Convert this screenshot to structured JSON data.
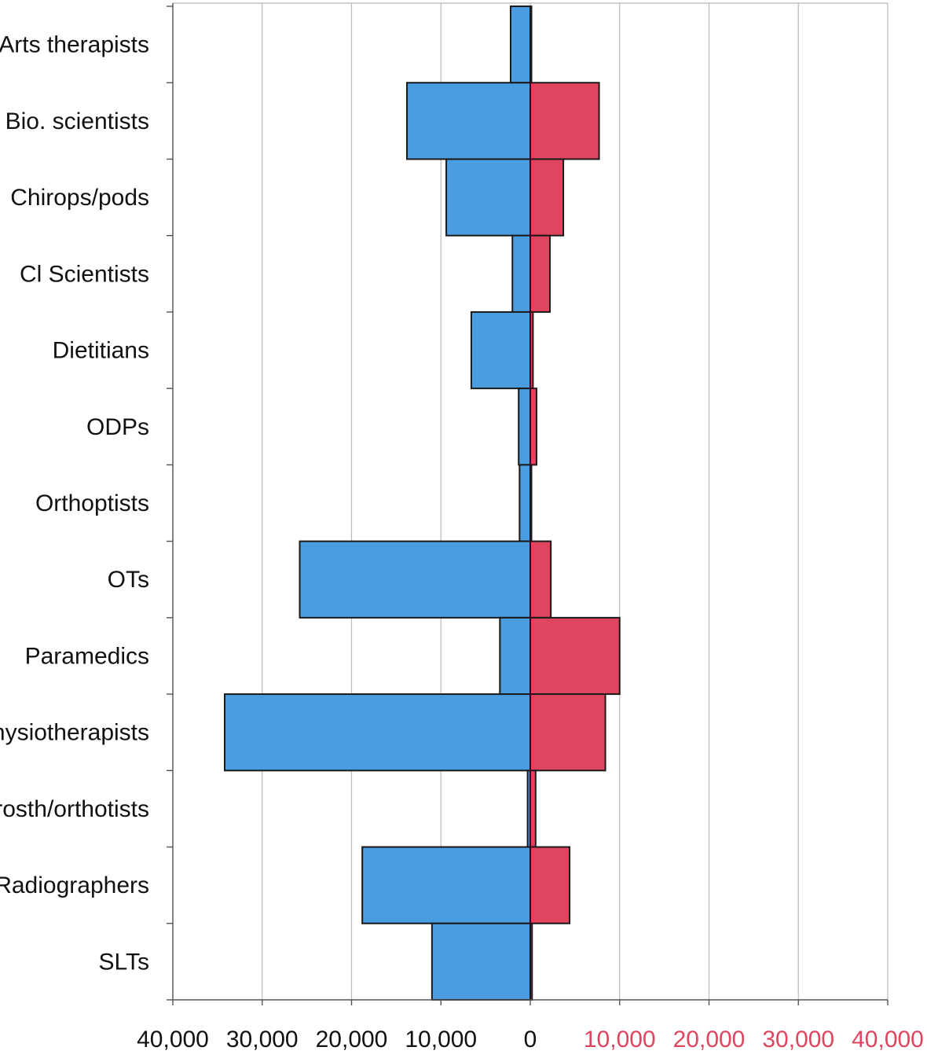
{
  "chart_data": {
    "type": "bar",
    "orientation": "horizontal",
    "layout": "diverging",
    "categories": [
      "Arts therapists",
      "Bio. scientists",
      "Chirops/pods",
      "Cl Scientists",
      "Dietitians",
      "ODPs",
      "Orthoptists",
      "OTs",
      "Paramedics",
      "Physiotherapists",
      "Prosth/orthotists",
      "Radiographers",
      "SLTs"
    ],
    "series": [
      {
        "color": "#4a9de0",
        "direction": "left",
        "values": [
          2200,
          13800,
          9400,
          2000,
          6600,
          1300,
          1200,
          25800,
          3400,
          34200,
          300,
          18800,
          11000
        ]
      },
      {
        "color": "#e0455f",
        "direction": "right",
        "values": [
          100,
          7700,
          3700,
          2200,
          300,
          700,
          100,
          2300,
          10000,
          8400,
          600,
          4400,
          200
        ]
      }
    ],
    "xlim": [
      -40000,
      40000
    ],
    "x_tick_labels": [
      "40,000",
      "30,000",
      "20,000",
      "10,000",
      "0",
      "10,000",
      "20,000",
      "30,000",
      "40,000"
    ],
    "x_tick_colors": [
      "#111111",
      "#111111",
      "#111111",
      "#111111",
      "#111111",
      "#e0455f",
      "#e0455f",
      "#e0455f",
      "#e0455f"
    ],
    "grid": "vertical",
    "legend": "none"
  }
}
